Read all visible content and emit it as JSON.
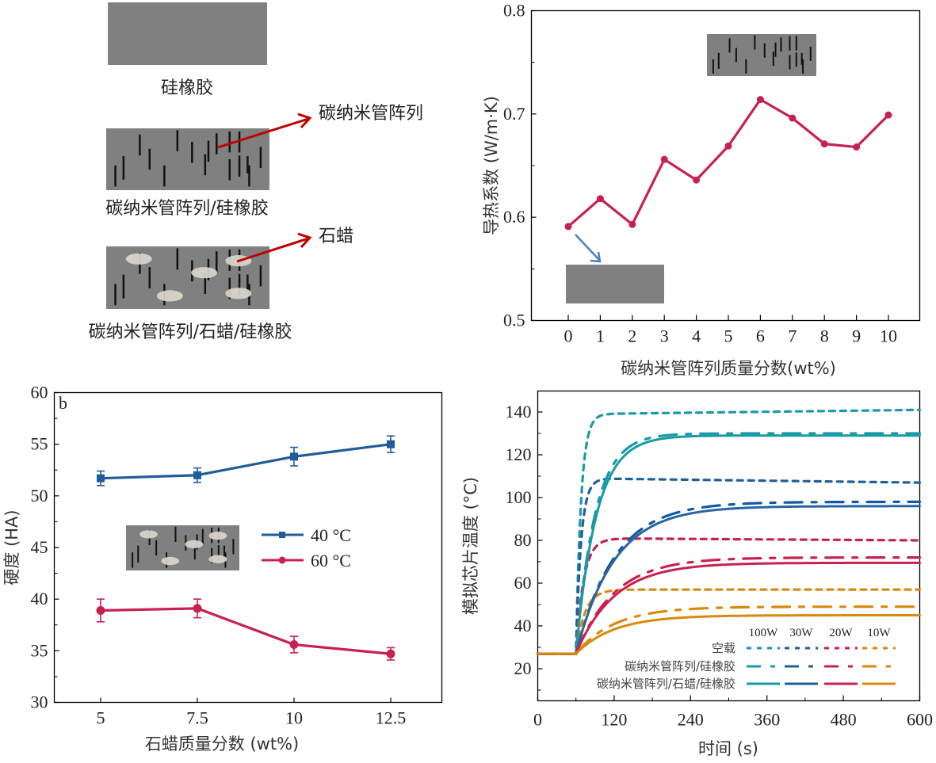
{
  "schematic": {
    "labels": {
      "silicone": "硅橡胶",
      "cnt_silicone": "碳纳米管阵列/硅橡胶",
      "cnt_wax_silicone": "碳纳米管阵列/石蜡/硅橡胶",
      "cnt_array_callout": "碳纳米管阵列",
      "wax_callout": "石蜡"
    },
    "colors": {
      "block": "#808080",
      "cnt": "#111111",
      "wax": "#d9d6cc",
      "arrow": "#c00000"
    }
  },
  "chart_data": [
    {
      "id": "thermal_conductivity",
      "type": "line",
      "title": "",
      "xlabel": "碳纳米管阵列质量分数(wt%)",
      "ylabel": "导热系数 (W/m·K)",
      "x": [
        0,
        1,
        2,
        3,
        4,
        5,
        6,
        7,
        8,
        9,
        10
      ],
      "xticks": [
        "0",
        "1",
        "2",
        "3",
        "4",
        "5",
        "6",
        "7",
        "8",
        "9",
        "10"
      ],
      "xlim": [
        -1,
        11
      ],
      "ylim": [
        0.5,
        0.8
      ],
      "yticks": [
        "0.5",
        "0.6",
        "0.7",
        "0.8"
      ],
      "series": [
        {
          "name": "thermal conductivity",
          "color": "#c8214f",
          "values": [
            0.591,
            0.618,
            0.593,
            0.656,
            0.636,
            0.669,
            0.714,
            0.696,
            0.671,
            0.668,
            0.699
          ]
        }
      ],
      "annotations": [
        "inset: CNT array schematic (top)",
        "inset: silicone rubber block with arrow pointing from x=0 point"
      ]
    },
    {
      "id": "hardness",
      "type": "line",
      "panel_label": "b",
      "xlabel": "石蜡质量分数 (wt%)",
      "ylabel": "硬度 (HA)",
      "x": [
        5,
        7.5,
        10,
        12.5
      ],
      "xticks": [
        "5",
        "7.5",
        "10",
        "12.5"
      ],
      "xlim": [
        3.8,
        13.7
      ],
      "ylim": [
        30,
        60
      ],
      "yticks": [
        "30",
        "35",
        "40",
        "45",
        "50",
        "55",
        "60"
      ],
      "legend_position": "center-right",
      "series": [
        {
          "name": "40 °C",
          "color": "#1f5c99",
          "marker": "square",
          "values": [
            51.7,
            52.0,
            53.8,
            55.0
          ],
          "errors": [
            0.7,
            0.7,
            0.9,
            0.8
          ]
        },
        {
          "name": "60 °C",
          "color": "#c8214f",
          "marker": "circle",
          "values": [
            38.9,
            39.1,
            35.6,
            34.7
          ],
          "errors": [
            1.1,
            0.9,
            0.8,
            0.6
          ]
        }
      ],
      "annotations": [
        "inset: CNT array / paraffin / silicone schematic"
      ]
    },
    {
      "id": "chip_temperature",
      "type": "line",
      "xlabel": "时间 (s)",
      "ylabel": "模拟芯片温度 (°C)",
      "xlim": [
        0,
        600
      ],
      "ylim": [
        5,
        150
      ],
      "xticks": [
        "0",
        "120",
        "240",
        "360",
        "480",
        "600"
      ],
      "yticks": [
        "20",
        "40",
        "60",
        "80",
        "100",
        "120",
        "140"
      ],
      "legend_position": "bottom-right",
      "legend": {
        "powers": [
          "100W",
          "30W",
          "20W",
          "10W"
        ],
        "rows": [
          "空载",
          "碳纳米管阵列/硅橡胶",
          "碳纳米管阵列/石蜡/硅橡胶"
        ]
      },
      "onset_time_s": 60,
      "ambient_c": 27,
      "series": [
        {
          "name": "空载 100W",
          "color": "#1a9aa6",
          "style": "short-dash",
          "tau": 8,
          "peak": 139,
          "final": 141
        },
        {
          "name": "空载 30W",
          "color": "#215f99",
          "style": "short-dash",
          "tau": 8,
          "peak": 109,
          "final": 107
        },
        {
          "name": "空载 20W",
          "color": "#c8214f",
          "style": "short-dash",
          "tau": 12,
          "peak": 81,
          "final": 80
        },
        {
          "name": "空载 10W",
          "color": "#d9890b",
          "style": "short-dash",
          "tau": 14,
          "peak": 57,
          "final": 57
        },
        {
          "name": "碳纳米管阵列/硅橡胶 100W",
          "color": "#1a9aa6",
          "style": "dash-dot",
          "tau": 30,
          "peak": 130,
          "final": 130
        },
        {
          "name": "碳纳米管阵列/硅橡胶 30W",
          "color": "#0d5aa8",
          "style": "dash-dot",
          "tau": 60,
          "peak": 98,
          "final": 98
        },
        {
          "name": "碳纳米管阵列/硅橡胶 20W",
          "color": "#c8214f",
          "style": "dash-dot",
          "tau": 60,
          "peak": 72,
          "final": 72
        },
        {
          "name": "碳纳米管阵列/硅橡胶 10W",
          "color": "#d9890b",
          "style": "dash-dot",
          "tau": 60,
          "peak": 49,
          "final": 49
        },
        {
          "name": "碳纳米管阵列/石蜡/硅橡胶 100W",
          "color": "#1a9aa6",
          "style": "solid",
          "tau": 32,
          "peak": 129,
          "final": 129
        },
        {
          "name": "碳纳米管阵列/石蜡/硅橡胶 30W",
          "color": "#2a63a0",
          "style": "solid",
          "tau": 60,
          "peak": 96,
          "final": 96
        },
        {
          "name": "碳纳米管阵列/石蜡/硅橡胶 20W",
          "color": "#c8214f",
          "style": "solid",
          "tau": 60,
          "peak": 69.5,
          "final": 69.5
        },
        {
          "name": "碳纳米管阵列/石蜡/硅橡胶 10W",
          "color": "#d9890b",
          "style": "solid",
          "tau": 60,
          "peak": 45,
          "final": 45
        }
      ]
    }
  ]
}
